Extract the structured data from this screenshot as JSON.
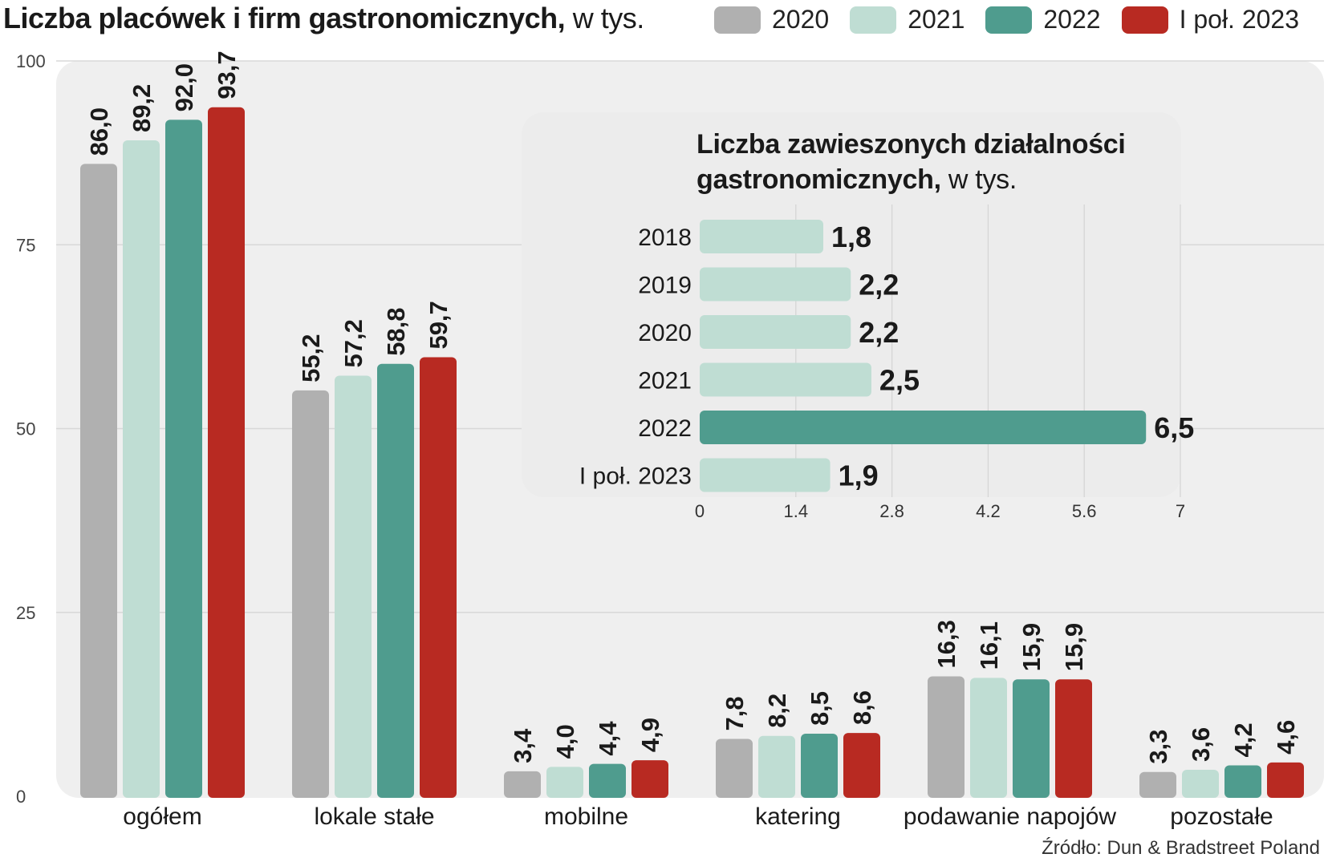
{
  "title": {
    "main": "Liczba placówek i firm gastronomicznych,",
    "unit": " w tys."
  },
  "legend": {
    "items": [
      {
        "label": "2020",
        "color": "#b0b0b0"
      },
      {
        "label": "2021",
        "color": "#bfddd3"
      },
      {
        "label": "2022",
        "color": "#4f9c8e"
      },
      {
        "label": "I poł. 2023",
        "color": "#b82a22"
      }
    ]
  },
  "inset": {
    "title_line1": "Liczba zawieszonych działalności",
    "title_line2": "gastronomicznych,",
    "unit": " w tys."
  },
  "source": "Źródło: Dun & Bradstreet Poland",
  "chart_data": [
    {
      "type": "bar",
      "title": "Liczba placówek i firm gastronomicznych, w tys.",
      "categories": [
        "ogółem",
        "lokale stałe",
        "mobilne",
        "katering",
        "podawanie napojów",
        "pozostałe"
      ],
      "series": [
        {
          "name": "2020",
          "color": "#b0b0b0",
          "values": [
            86.0,
            55.2,
            3.4,
            7.8,
            16.3,
            3.3
          ],
          "labels": [
            "86,0",
            "55,2",
            "3,4",
            "7,8",
            "16,3",
            "3,3"
          ]
        },
        {
          "name": "2021",
          "color": "#bfddd3",
          "values": [
            89.2,
            57.2,
            4.0,
            8.2,
            16.1,
            3.6
          ],
          "labels": [
            "89,2",
            "57,2",
            "4,0",
            "8,2",
            "16,1",
            "3,6"
          ]
        },
        {
          "name": "2022",
          "color": "#4f9c8e",
          "values": [
            92.0,
            58.8,
            4.4,
            8.5,
            15.9,
            4.2
          ],
          "labels": [
            "92,0",
            "58,8",
            "4,4",
            "8,5",
            "15,9",
            "4,2"
          ]
        },
        {
          "name": "I poł. 2023",
          "color": "#b82a22",
          "values": [
            93.7,
            59.7,
            4.9,
            8.6,
            15.9,
            4.6
          ],
          "labels": [
            "93,7",
            "59,7",
            "4,9",
            "8,6",
            "15,9",
            "4,6"
          ]
        }
      ],
      "ylim": [
        0,
        100
      ],
      "yticks": [
        0,
        25,
        50,
        75,
        100
      ],
      "grid": true,
      "legend": "top-right"
    },
    {
      "type": "bar",
      "orientation": "horizontal",
      "title": "Liczba zawieszonych działalności gastronomicznych, w tys.",
      "categories": [
        "2018",
        "2019",
        "2020",
        "2021",
        "2022",
        "I poł. 2023"
      ],
      "values": [
        1.8,
        2.2,
        2.2,
        2.5,
        6.5,
        1.9
      ],
      "labels": [
        "1,8",
        "2,2",
        "2,2",
        "2,5",
        "6,5",
        "1,9"
      ],
      "highlight_color": "#4f9c8e",
      "base_color": "#bfddd3",
      "highlight_index": 4,
      "xlim": [
        0,
        7
      ],
      "xticks": [
        "0",
        "1.4",
        "2.8",
        "4.2",
        "5.6",
        "7"
      ],
      "grid": true
    }
  ]
}
